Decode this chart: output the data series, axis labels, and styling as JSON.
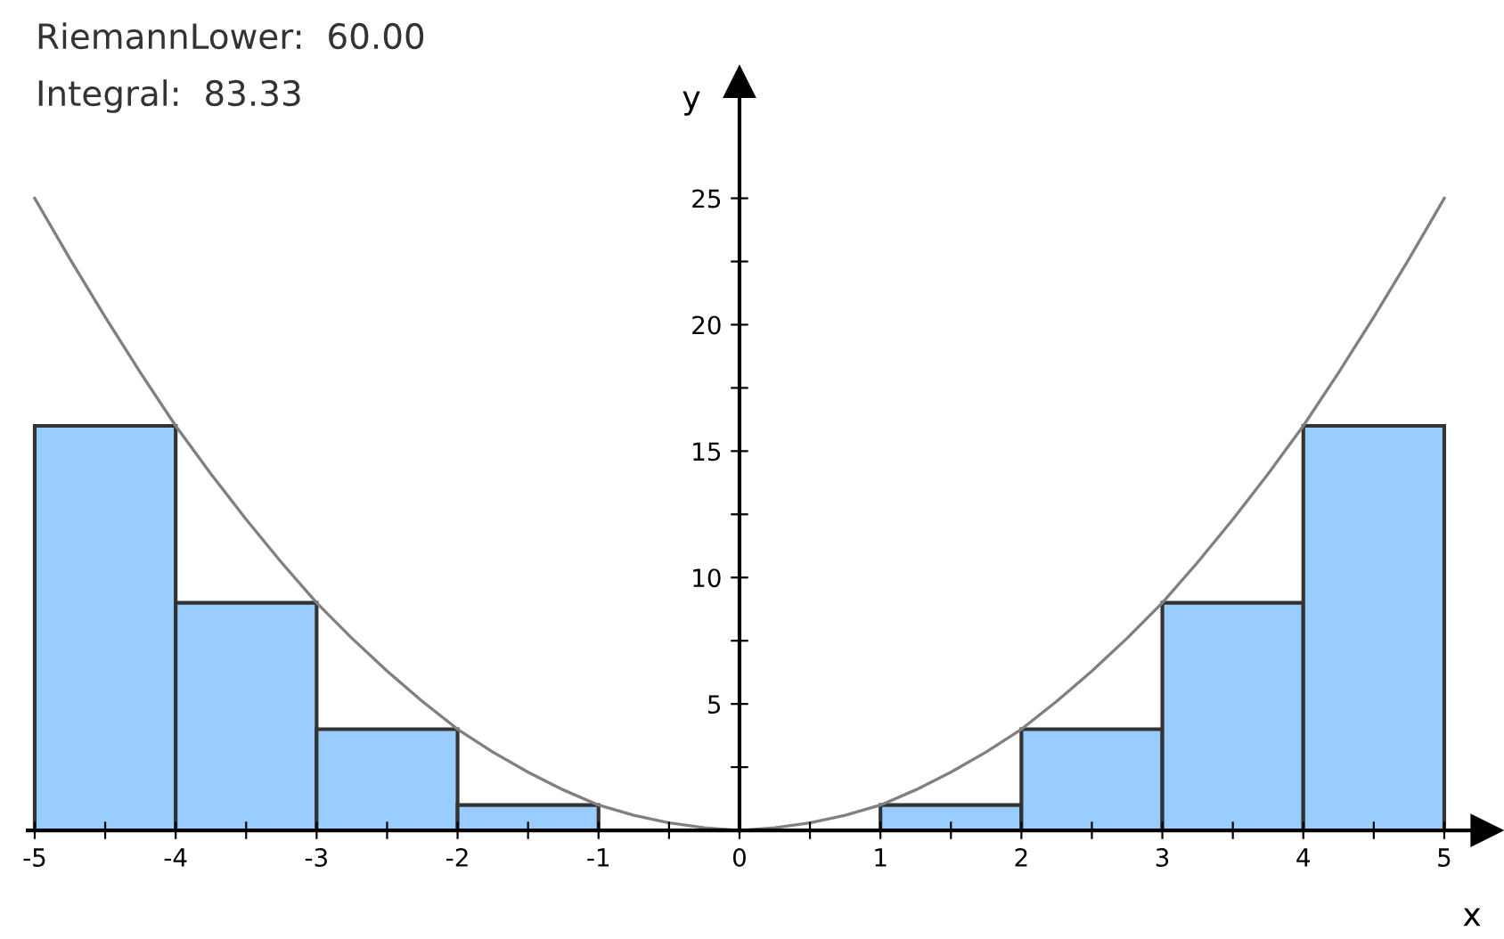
{
  "chart_data": {
    "type": "histogram",
    "xlabel": "x",
    "ylabel": "y",
    "annotations": [
      "RiemannLower:  60.00",
      "Integral:  83.33"
    ],
    "bins": [
      -5,
      -4,
      -3,
      -2,
      -1,
      0,
      1,
      2,
      3,
      4,
      5
    ],
    "values": [
      16,
      9,
      4,
      1,
      0,
      0,
      1,
      4,
      9,
      16
    ],
    "color": "#99ccff",
    "series": [
      {
        "type": "line",
        "color": "#808080",
        "x": [
          -5,
          -4.75,
          -4.5,
          -4.25,
          -4,
          -3.75,
          -3.5,
          -3.25,
          -3,
          -2.75,
          -2.5,
          -2.25,
          -2,
          -1.75,
          -1.5,
          -1.25,
          -1,
          -0.75,
          -0.5,
          -0.25,
          0,
          0.25,
          0.5,
          0.75,
          1,
          1.25,
          1.5,
          1.75,
          2,
          2.25,
          2.5,
          2.75,
          3,
          3.25,
          3.5,
          3.75,
          4,
          4.25,
          4.5,
          4.75,
          5
        ],
        "values": [
          25,
          22.6,
          20.3,
          18.1,
          16,
          14.1,
          12.3,
          10.6,
          9,
          7.6,
          6.3,
          5.1,
          4,
          3.1,
          2.3,
          1.6,
          1,
          0.6,
          0.3,
          0.1,
          0,
          0.1,
          0.3,
          0.6,
          1,
          1.6,
          2.3,
          3.1,
          4,
          5.1,
          6.3,
          7.6,
          9,
          10.6,
          12.3,
          14.1,
          16,
          18.1,
          20.3,
          22.6,
          25
        ]
      }
    ],
    "xlim": [
      -5.05,
      5.3
    ],
    "ylim": [
      0,
      29.6
    ],
    "xticks": [
      -5,
      {
        "value": -4.5,
        "label": null
      },
      -4,
      {
        "value": -3.5,
        "label": null
      },
      -3,
      {
        "value": -2.5,
        "label": null
      },
      -2,
      {
        "value": -1.5,
        "label": null
      },
      -1,
      {
        "value": -0.5,
        "label": null
      },
      0,
      {
        "value": 0.5,
        "label": null
      },
      1,
      {
        "value": 1.5,
        "label": null
      },
      2,
      {
        "value": 2.5,
        "label": null
      },
      3,
      {
        "value": 3.5,
        "label": null
      },
      4,
      {
        "value": 4.5,
        "label": null
      },
      5
    ],
    "yticks": [
      {
        "value": 2.5,
        "label": null
      },
      5,
      {
        "value": 7.5,
        "label": null
      },
      10,
      {
        "value": 12.5,
        "label": null
      },
      15,
      {
        "value": 17.5,
        "label": null
      },
      20,
      {
        "value": 22.5,
        "label": null
      },
      25
    ],
    "grid": false,
    "legend": false
  }
}
